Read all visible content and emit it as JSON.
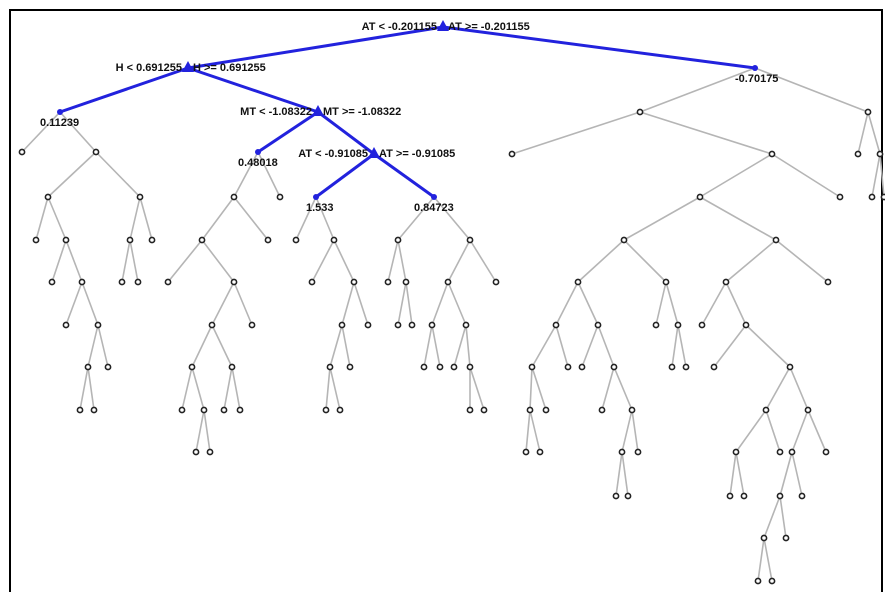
{
  "splits": [
    {
      "left": "AT < -0.201155",
      "right": "AT >= -0.201155"
    },
    {
      "left": "H < 0.691255",
      "right": "H >= 0.691255"
    },
    {
      "left": "MT < -1.08322",
      "right": "MT >= -1.08322"
    },
    {
      "left": "AT < -0.91085",
      "right": "AT >= -0.91085"
    }
  ],
  "leaves": [
    "0.11239",
    "0.48018",
    "1.533",
    "0.84723",
    "-0.70175"
  ]
}
